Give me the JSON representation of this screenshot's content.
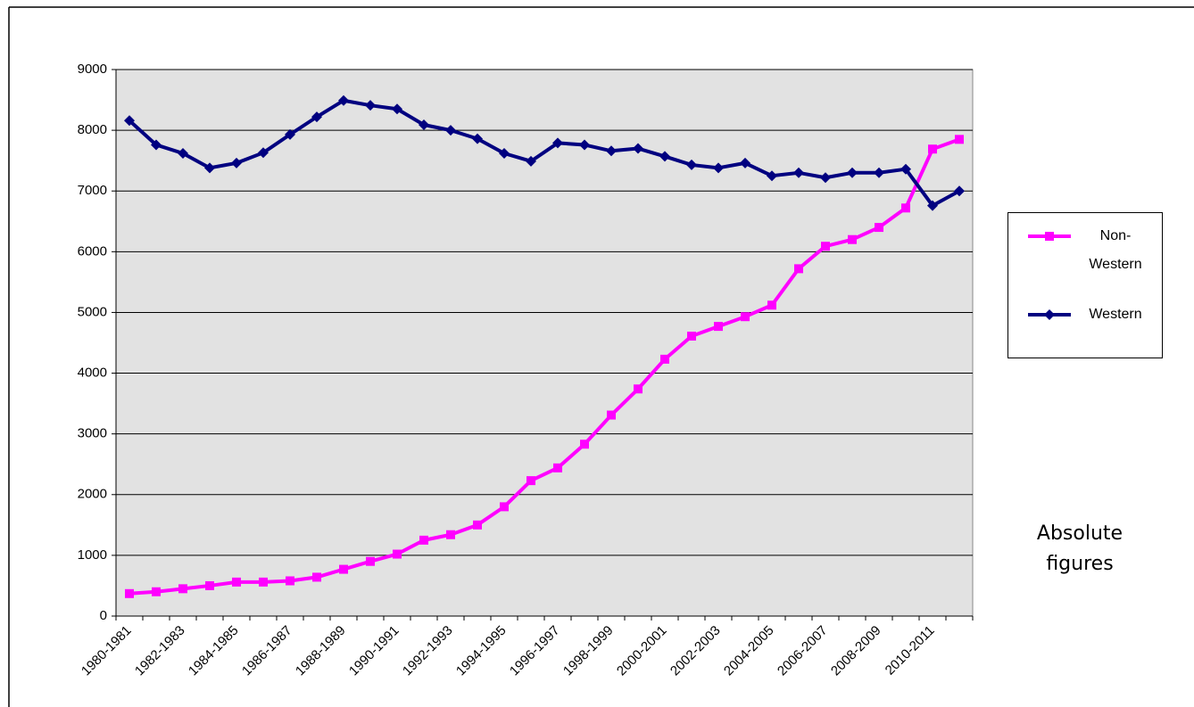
{
  "chart_data": {
    "type": "line",
    "annotation": "Absolute figures",
    "categories": [
      "1980-1981",
      null,
      "1982-1983",
      null,
      "1984-1985",
      null,
      "1986-1987",
      null,
      "1988-1989",
      null,
      "1990-1991",
      null,
      "1992-1993",
      null,
      "1994-1995",
      null,
      "1996-1997",
      null,
      "1998-1999",
      null,
      "2000-2001",
      null,
      "2002-2003",
      null,
      "2004-2005",
      null,
      "2006-2007",
      null,
      "2008-2009",
      null,
      "2010-2011",
      null
    ],
    "series": [
      {
        "name": "Non-Western",
        "color": "#ff00ff",
        "marker": "square",
        "values": [
          370,
          400,
          450,
          500,
          560,
          560,
          580,
          640,
          770,
          900,
          1020,
          1250,
          1340,
          1500,
          1800,
          2230,
          2440,
          2830,
          3310,
          3740,
          4230,
          4610,
          4770,
          4930,
          5120,
          5720,
          6090,
          6200,
          6400,
          6720,
          7690,
          7850
        ]
      },
      {
        "name": "Western",
        "color": "#000080",
        "marker": "diamond",
        "values": [
          8160,
          7760,
          7620,
          7380,
          7460,
          7630,
          7930,
          8220,
          8490,
          8410,
          8350,
          8090,
          8000,
          7860,
          7620,
          7490,
          7790,
          7760,
          7660,
          7700,
          7570,
          7430,
          7380,
          7460,
          7250,
          7300,
          7220,
          7300,
          7300,
          7360,
          6760,
          7000
        ]
      }
    ],
    "ylim": [
      0,
      9000
    ],
    "yticks": [
      0,
      1000,
      2000,
      3000,
      4000,
      5000,
      6000,
      7000,
      8000,
      9000
    ],
    "grid": true,
    "legend": "right"
  }
}
